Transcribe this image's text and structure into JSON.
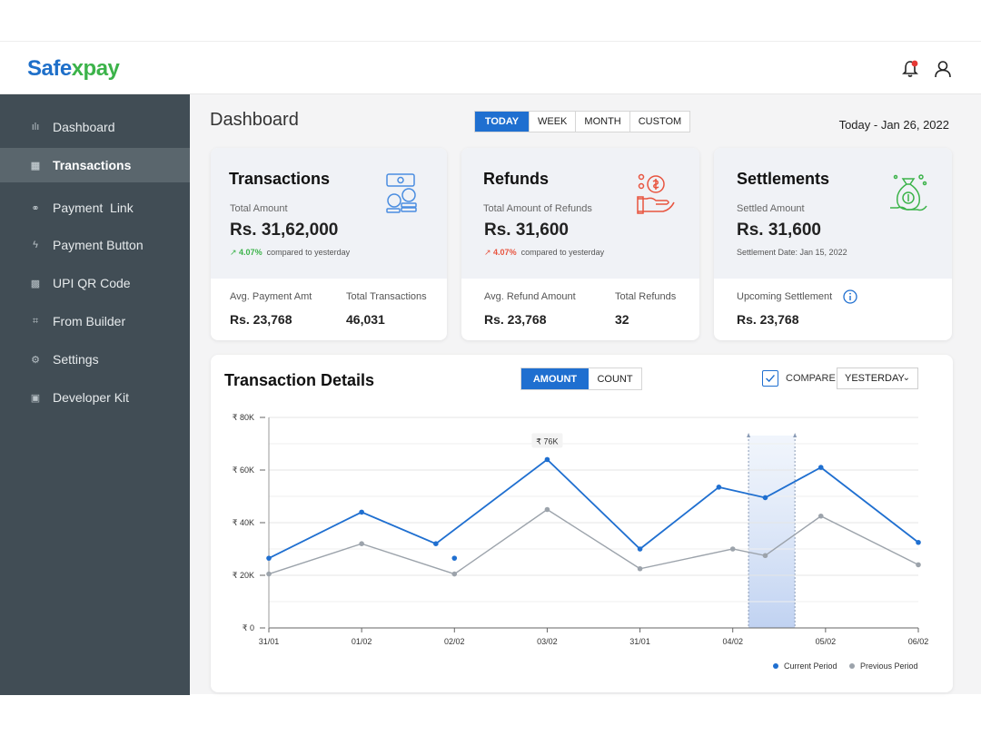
{
  "brand": {
    "part1": "Safe",
    "part2": "xpay"
  },
  "header": {
    "bell_icon": "bell-icon",
    "user_icon": "user-icon",
    "notification_color": "#e53935"
  },
  "sidebar": {
    "items": [
      {
        "label": "Dashboard",
        "icon": "bar-chart-icon",
        "glyph": "ılı"
      },
      {
        "label": "Transactions",
        "icon": "grid-icon",
        "glyph": "▦"
      },
      {
        "label": "Payment  Link",
        "icon": "link-icon",
        "glyph": "⚭"
      },
      {
        "label": "Payment Button",
        "icon": "bolt-icon",
        "glyph": "ϟ"
      },
      {
        "label": "UPI QR Code",
        "icon": "qr-icon",
        "glyph": "▩"
      },
      {
        "label": "From Builder",
        "icon": "frame-icon",
        "glyph": "⌗"
      },
      {
        "label": "Settings",
        "icon": "gear-icon",
        "glyph": "⚙"
      },
      {
        "label": "Developer Kit",
        "icon": "kit-icon",
        "glyph": "▣"
      }
    ],
    "active_index": 1
  },
  "page": {
    "title": "Dashboard",
    "date": "Today - Jan 26, 2022"
  },
  "period_tabs": [
    "TODAY",
    "WEEK",
    "MONTH",
    "CUSTOM"
  ],
  "cards": {
    "transactions": {
      "title": "Transactions",
      "label": "Total Amount",
      "amount": "Rs. 31,62,000",
      "change": "4.07%",
      "change_suffix": "compared to yesterday",
      "change_color": "#3cb34a",
      "stat1_label": "Avg. Payment Amt",
      "stat1_value": "Rs. 23,768",
      "stat2_label": "Total Transactions",
      "stat2_value": "46,031"
    },
    "refunds": {
      "title": "Refunds",
      "label": "Total Amount of Refunds",
      "amount": "Rs. 31,600",
      "change": "4.07%",
      "change_suffix": "compared to yesterday",
      "change_color": "#e8543f",
      "stat1_label": "Avg. Refund Amount",
      "stat1_value": "Rs. 23,768",
      "stat2_label": "Total Refunds",
      "stat2_value": "32"
    },
    "settlements": {
      "title": "Settlements",
      "label": "Settled Amount",
      "amount": "Rs. 31,600",
      "note": "Settlement Date: Jan 15, 2022",
      "stat1_label": "Upcoming Settlement",
      "stat1_value": "Rs. 23,768"
    }
  },
  "details": {
    "title": "Transaction Details",
    "toggle": [
      "AMOUNT",
      "COUNT"
    ],
    "compare_label": "COMPARE",
    "compare_checked": true,
    "compare_select": "YESTERDAY"
  },
  "chart_data": {
    "type": "line",
    "categories": [
      "31/01",
      "",
      "01/02",
      "",
      "02/02",
      "",
      "03/02",
      "",
      "31/01",
      "",
      "04/02",
      "",
      "05/02",
      "",
      "06/02"
    ],
    "tick_labels": [
      "31/01",
      "01/02",
      "02/02",
      "03/02",
      "31/01",
      "04/02",
      "05/02",
      "06/02"
    ],
    "y_ticks": [
      "₹ 0",
      "₹ 20K",
      "₹ 40K",
      "₹ 60K",
      "₹ 80K"
    ],
    "ylim": [
      0,
      80000
    ],
    "series": [
      {
        "name": "Current Period",
        "color": "#1f6fd0",
        "points": [
          [
            0,
            26500
          ],
          [
            1,
            44000
          ],
          [
            1.8,
            32000
          ],
          [
            3,
            64000
          ],
          [
            4,
            30000
          ],
          [
            4.85,
            53500
          ],
          [
            5.35,
            49500
          ],
          [
            5.95,
            61000
          ],
          [
            7,
            32500
          ]
        ],
        "extra_points": [
          [
            2,
            26500
          ]
        ]
      },
      {
        "name": "Previous Period",
        "color": "#9ca3ab",
        "points": [
          [
            0,
            20500
          ],
          [
            1,
            32000
          ],
          [
            2,
            20500
          ],
          [
            3,
            45000
          ],
          [
            4,
            22500
          ],
          [
            5,
            30000
          ],
          [
            5.35,
            27500
          ],
          [
            5.95,
            42500
          ],
          [
            7,
            24000
          ]
        ]
      }
    ],
    "highlight_range": [
      5.17,
      5.67
    ],
    "annotation": {
      "label": "₹ 76K"
    },
    "legend_position": "bottom-right"
  }
}
